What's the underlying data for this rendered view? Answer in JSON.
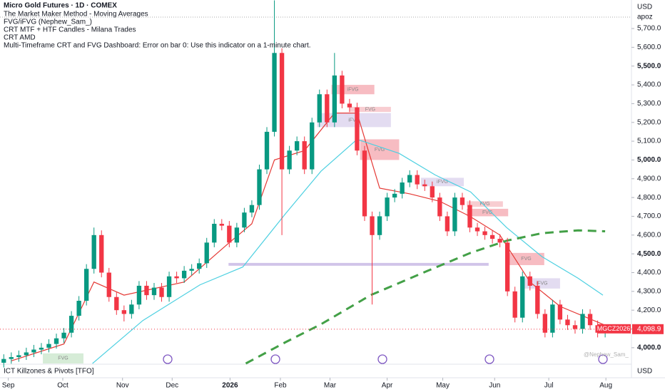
{
  "chart_data": {
    "type": "candlestick",
    "title": "Micro Gold Futures · 1D · COMEX",
    "indicators": [
      "The Market Maker Method - Moving Averages",
      "FVG/iFVG (Nephew_Sam_)",
      "CRT MTF + HTF Candles - Milana Trades",
      "CRT AMD",
      "Multi-Timeframe CRT and FVG Dashboard: Error on bar 0: Use this indicator on a 1-minute chart."
    ],
    "currency": "USD",
    "scale_note": "apoz",
    "lower_pane_title": "ICT Killzones & Pivots [TFO]",
    "lower_pane_currency": "USD",
    "watermark": "@Nephew_Sam_",
    "symbol_tag": "MGCZ2026",
    "last_price": {
      "value": 4098.9,
      "label": "4,098.9"
    },
    "up_color": "#089981",
    "down_color": "#f23645",
    "open": [
      3920,
      3940,
      3950,
      3960,
      3975,
      3990,
      4000,
      4020,
      4050,
      4080,
      4170,
      4250,
      4420,
      4600,
      4400,
      4270,
      4200,
      4180,
      4230,
      4330,
      4280,
      4320,
      4270,
      4380,
      4370,
      4410,
      4420,
      4450,
      4560,
      4660,
      4650,
      4560,
      4640,
      4720,
      4760,
      4950,
      5150,
      5570,
      4950,
      5050,
      5100,
      4950,
      5200,
      5350,
      5200,
      5450,
      5300,
      5280,
      5050,
      4700,
      4600,
      4700,
      4800,
      4820,
      4880,
      4920,
      4870,
      4860,
      4800,
      4700,
      4620,
      4800,
      4760,
      4640,
      4620,
      4600,
      4580,
      4560,
      4300,
      4160,
      4380,
      4330,
      4180,
      4080,
      4230,
      4150,
      4120,
      4100,
      4180,
      4120,
      4080
    ],
    "high": [
      3965,
      3975,
      3985,
      4000,
      4015,
      4025,
      4045,
      4075,
      4105,
      4195,
      4275,
      4445,
      4640,
      4625,
      4425,
      4295,
      4225,
      4255,
      4355,
      4355,
      4345,
      4345,
      4405,
      4405,
      4435,
      4445,
      4475,
      4585,
      4685,
      4685,
      4675,
      4665,
      4745,
      4785,
      4975,
      5175,
      5850,
      5595,
      5075,
      5125,
      5125,
      5225,
      5375,
      5375,
      5570,
      5475,
      5325,
      5305,
      5075,
      4725,
      4725,
      4825,
      4845,
      4905,
      4945,
      4945,
      4895,
      4885,
      4825,
      4725,
      4825,
      4825,
      4785,
      4665,
      4645,
      4625,
      4605,
      4585,
      4325,
      4405,
      4405,
      4355,
      4205,
      4255,
      4255,
      4175,
      4145,
      4205,
      4205,
      4145,
      4124
    ],
    "low": [
      3895,
      3915,
      3925,
      3935,
      3950,
      3965,
      3975,
      3995,
      4025,
      4055,
      4145,
      4225,
      4395,
      4375,
      4245,
      4175,
      4140,
      4155,
      4205,
      4255,
      4255,
      4245,
      4245,
      4345,
      4345,
      4385,
      4395,
      4425,
      4535,
      4625,
      4535,
      4535,
      4615,
      4695,
      4735,
      4925,
      5125,
      4600,
      4925,
      5025,
      4925,
      4925,
      5175,
      5175,
      5175,
      5275,
      5255,
      5025,
      4675,
      4230,
      4575,
      4675,
      4775,
      4795,
      4855,
      4845,
      4835,
      4775,
      4675,
      4595,
      4595,
      4735,
      4615,
      4595,
      4575,
      4555,
      4535,
      4275,
      4135,
      4135,
      4305,
      4155,
      4055,
      4055,
      4125,
      4095,
      4075,
      4075,
      4095,
      4055,
      4055
    ],
    "close": [
      3940,
      3950,
      3960,
      3975,
      3990,
      4000,
      4020,
      4050,
      4080,
      4170,
      4250,
      4420,
      4600,
      4400,
      4270,
      4200,
      4180,
      4230,
      4330,
      4280,
      4320,
      4270,
      4380,
      4370,
      4410,
      4420,
      4450,
      4560,
      4660,
      4650,
      4560,
      4640,
      4720,
      4760,
      4950,
      5150,
      5570,
      4950,
      5050,
      5100,
      4950,
      5200,
      5350,
      5200,
      5450,
      5300,
      5280,
      5050,
      4700,
      4600,
      4700,
      4800,
      4820,
      4880,
      4920,
      4870,
      4860,
      4800,
      4700,
      4620,
      4800,
      4760,
      4640,
      4620,
      4600,
      4580,
      4560,
      4300,
      4160,
      4380,
      4330,
      4180,
      4080,
      4230,
      4150,
      4120,
      4100,
      4180,
      4120,
      4080,
      4098.9
    ],
    "series": [
      {
        "color": "#e53935",
        "dash": false,
        "x": [
          1,
          8,
          12,
          16,
          24,
          30,
          33,
          36,
          40,
          44,
          47,
          50,
          54,
          58,
          62,
          66,
          70,
          74,
          80
        ],
        "values": [
          3930,
          4020,
          4350,
          4280,
          4350,
          4560,
          4660,
          5000,
          5050,
          5250,
          5250,
          4850,
          4820,
          4780,
          4700,
          4600,
          4350,
          4220,
          4120
        ]
      },
      {
        "color": "#4dd0e1",
        "dash": false,
        "x": [
          11.8,
          18.5,
          26.1,
          31.8,
          37.5,
          42.2,
          47,
          52.6,
          57.4,
          62.1,
          66.9,
          71.6,
          76.4,
          79.7
        ],
        "values": [
          3916,
          4145,
          4335,
          4430,
          4715,
          4940,
          5110,
          5035,
          4920,
          4830,
          4640,
          4485,
          4370,
          4280
        ]
      },
      {
        "color": "#43a047",
        "dash": true,
        "x": [
          32.2,
          37.5,
          42.2,
          48.8,
          56.4,
          62.1,
          66.9,
          71.6,
          76.4,
          80
        ],
        "values": [
          3916,
          4030,
          4125,
          4280,
          4410,
          4505,
          4570,
          4610,
          4625,
          4620
        ]
      }
    ],
    "zones": [
      {
        "label": "iFVG",
        "color": "#f4a6ae",
        "x": [
          43.6,
          49.3
        ],
        "y": [
          5350,
          5400
        ]
      },
      {
        "label": "FVG",
        "color": "#f6bcc2",
        "x": [
          46,
          51.5
        ],
        "y": [
          5256,
          5283
        ]
      },
      {
        "label": "iFVG",
        "color": "#d9d0ec",
        "x": [
          41.7,
          51.5
        ],
        "y": [
          5175,
          5250
        ]
      },
      {
        "label": "FVG",
        "color": "#f4a6ae",
        "x": [
          47.4,
          52.6
        ],
        "y": [
          5000,
          5110
        ]
      },
      {
        "label": "iFVG",
        "color": "#d9d0ec",
        "x": [
          55.5,
          61.2
        ],
        "y": [
          4860,
          4905
        ]
      },
      {
        "label": "FVG",
        "color": "#f6bcc2",
        "x": [
          61.6,
          66.4
        ],
        "y": [
          4750,
          4780
        ]
      },
      {
        "label": "FVG",
        "color": "#f4a6ae",
        "x": [
          61.6,
          67.1
        ],
        "y": [
          4700,
          4740
        ]
      },
      {
        "label": "FVG",
        "color": "#f4a6ae",
        "x": [
          67.1,
          71.9
        ],
        "y": [
          4440,
          4505
        ]
      },
      {
        "label": "iFVG",
        "color": "#d9d0ec",
        "x": [
          69.2,
          74
        ],
        "y": [
          4315,
          4370
        ]
      },
      {
        "label": "FVG",
        "color": "#c8e6c9",
        "x": [
          5.2,
          10.6
        ],
        "y": [
          3916,
          3970
        ]
      }
    ],
    "level": {
      "color": "#d1c4e9",
      "x": [
        29.9,
        64.5
      ],
      "value": 4444
    },
    "xlim": [
      -0.5,
      83.5
    ],
    "ylim": [
      3916,
      5852
    ],
    "xticks": [
      {
        "value": 0.6,
        "label": "Sep"
      },
      {
        "value": 7.85,
        "label": "Oct"
      },
      {
        "value": 15.8,
        "label": "Nov"
      },
      {
        "value": 22.4,
        "label": "Dec"
      },
      {
        "value": 30.1,
        "label": "2026"
      },
      {
        "value": 36.8,
        "label": "Feb"
      },
      {
        "value": 43.4,
        "label": "Mar"
      },
      {
        "value": 51,
        "label": "Apr"
      },
      {
        "value": 58.4,
        "label": "May"
      },
      {
        "value": 65.3,
        "label": "Jun"
      },
      {
        "value": 72.5,
        "label": "Jul"
      },
      {
        "value": 80.1,
        "label": "Aug"
      }
    ],
    "yticks": [
      {
        "value": 4000,
        "label": "4,000.0"
      },
      {
        "value": 4100,
        "label": "4,100.0"
      },
      {
        "value": 4200,
        "label": "4,200.0"
      },
      {
        "value": 4300,
        "label": "4,300.0"
      },
      {
        "value": 4400,
        "label": "4,400.0"
      },
      {
        "value": 4500,
        "label": "4,500.0"
      },
      {
        "value": 4600,
        "label": "4,600.0"
      },
      {
        "value": 4700,
        "label": "4,700.0"
      },
      {
        "value": 4800,
        "label": "4,800.0"
      },
      {
        "value": 4900,
        "label": "4,900.0"
      },
      {
        "value": 5000,
        "label": "5,000.0"
      },
      {
        "value": 5100,
        "label": "5,100.0"
      },
      {
        "value": 5200,
        "label": "5,200.0"
      },
      {
        "value": 5300,
        "label": "5,300.0"
      },
      {
        "value": 5400,
        "label": "5,400.0"
      },
      {
        "value": 5500,
        "label": "5,500.0"
      },
      {
        "value": 5600,
        "label": "5,600.0"
      },
      {
        "value": 5700,
        "label": "5,700.0"
      }
    ]
  }
}
